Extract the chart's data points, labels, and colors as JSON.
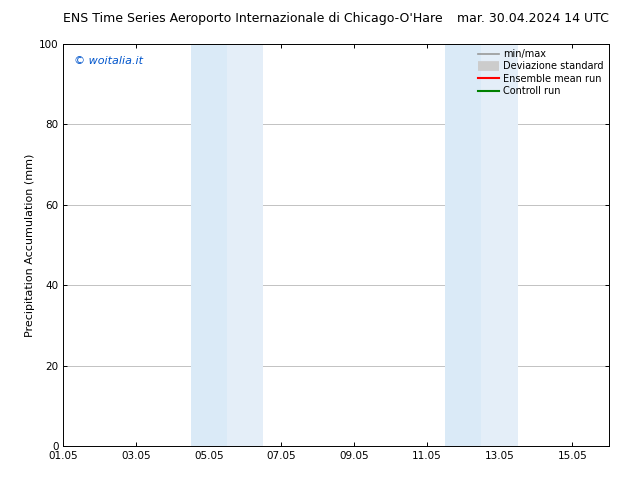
{
  "title_left": "ENS Time Series Aeroporto Internazionale di Chicago-O'Hare",
  "title_right": "mar. 30.04.2024 14 UTC",
  "ylabel": "Precipitation Accumulation (mm)",
  "watermark": "© woitalia.it",
  "watermark_color": "#0055cc",
  "ylim": [
    0,
    100
  ],
  "yticks": [
    0,
    20,
    40,
    60,
    80,
    100
  ],
  "xlim": [
    0,
    15
  ],
  "xtick_labels": [
    "01.05",
    "03.05",
    "05.05",
    "07.05",
    "09.05",
    "11.05",
    "13.05",
    "15.05"
  ],
  "xtick_positions": [
    0,
    2,
    4,
    6,
    8,
    10,
    12,
    14
  ],
  "shaded_bands": [
    {
      "x_start": 3.5,
      "x_end": 4.5,
      "color": "#daeaf7"
    },
    {
      "x_start": 4.5,
      "x_end": 5.5,
      "color": "#e4eef8"
    },
    {
      "x_start": 10.5,
      "x_end": 11.5,
      "color": "#daeaf7"
    },
    {
      "x_start": 11.5,
      "x_end": 12.5,
      "color": "#e4eef8"
    }
  ],
  "legend_entries": [
    {
      "label": "min/max",
      "color": "#999999",
      "linewidth": 1.2
    },
    {
      "label": "Deviazione standard",
      "color": "#cccccc",
      "linewidth": 7
    },
    {
      "label": "Ensemble mean run",
      "color": "#ff0000",
      "linewidth": 1.5
    },
    {
      "label": "Controll run",
      "color": "#008000",
      "linewidth": 1.5
    }
  ],
  "background_color": "#ffffff",
  "spine_color": "#000000",
  "title_fontsize": 9,
  "tick_fontsize": 7.5,
  "ylabel_fontsize": 8,
  "watermark_fontsize": 8,
  "legend_fontsize": 7
}
